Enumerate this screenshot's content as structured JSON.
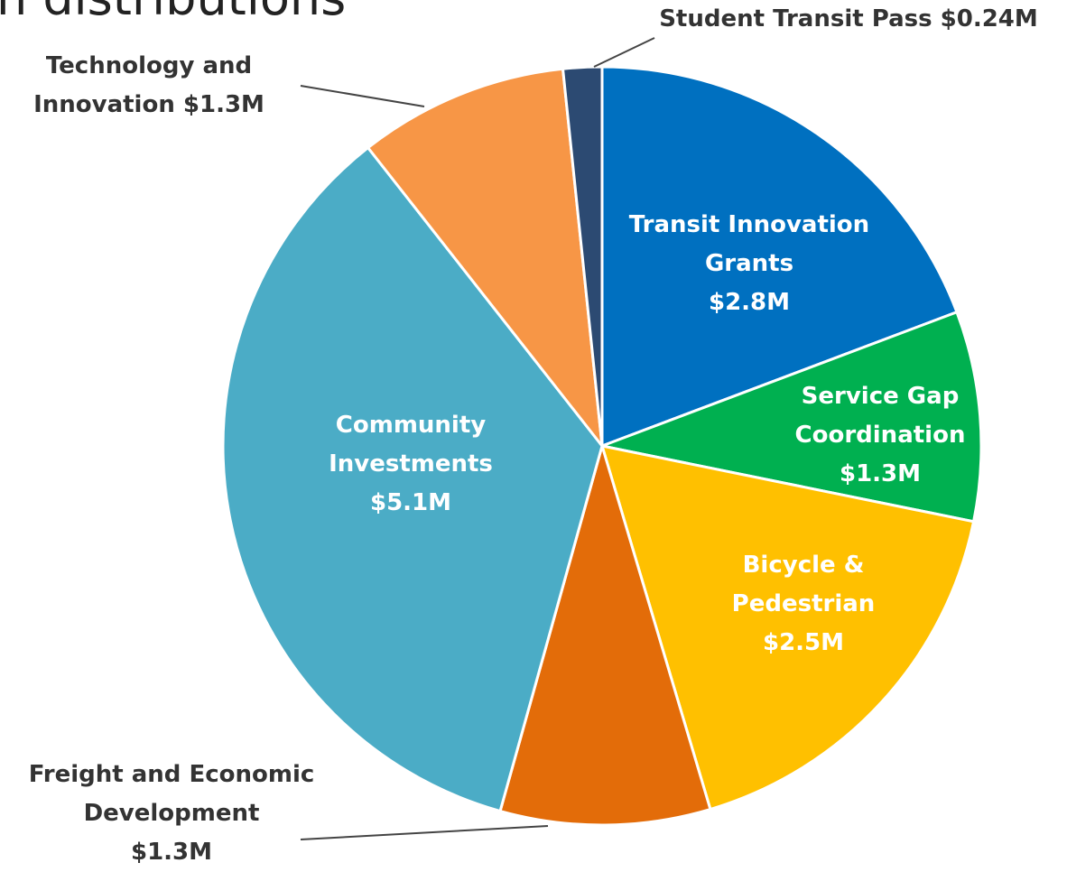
{
  "chart_data": {
    "type": "pie",
    "title": "n distributions",
    "categories": [
      "Transit Innovation Grants",
      "Service Gap Coordination",
      "Bicycle & Pedestrian",
      "Freight and Economic Development",
      "Community Investments",
      "Technology and Innovation",
      "Student Transit Pass"
    ],
    "values": [
      2.8,
      1.3,
      2.5,
      1.3,
      5.1,
      1.3,
      0.24
    ],
    "value_labels": [
      "$2.8M",
      "$1.3M",
      "$2.5M",
      "$1.3M",
      "$5.1M",
      "$1.3M",
      "$0.24M"
    ],
    "colors": [
      "#0070c0",
      "#00b050",
      "#ffc000",
      "#e36c09",
      "#4bacc6",
      "#f79646",
      "#2c4a72"
    ]
  }
}
